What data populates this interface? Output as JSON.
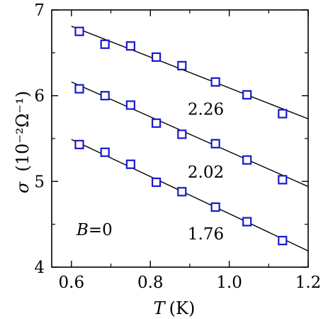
{
  "chart_data": {
    "type": "scatter",
    "xlabel_symbol": "T",
    "xlabel_unit": "(K)",
    "ylabel_symbol": "σ",
    "ylabel_unit": "(10⁻²Ω⁻¹)",
    "xlim": [
      0.55,
      1.2
    ],
    "ylim": [
      4,
      7
    ],
    "xticks": [
      0.6,
      0.8,
      1.0,
      1.2
    ],
    "xtick_labels": [
      "0.6",
      "0.8",
      "1.0",
      "1.2"
    ],
    "yticks": [
      4,
      5,
      6,
      7
    ],
    "ytick_labels": [
      "4",
      "5",
      "6",
      "7"
    ],
    "marker_color": "#1a1acc",
    "line_color": "#000000",
    "annotation_prefix": "B",
    "annotation_rest": "=0",
    "series": [
      {
        "label": "2.26",
        "x": [
          0.62,
          0.685,
          0.75,
          0.815,
          0.88,
          0.965,
          1.045,
          1.135
        ],
        "y": [
          6.75,
          6.6,
          6.58,
          6.45,
          6.35,
          6.16,
          6.01,
          5.79
        ],
        "fit": {
          "x": [
            0.6,
            1.2
          ],
          "y": [
            6.81,
            5.73
          ]
        }
      },
      {
        "label": "2.02",
        "x": [
          0.62,
          0.685,
          0.75,
          0.815,
          0.88,
          0.965,
          1.045,
          1.135
        ],
        "y": [
          6.08,
          6.0,
          5.89,
          5.68,
          5.55,
          5.44,
          5.25,
          5.02
        ],
        "fit": {
          "x": [
            0.6,
            1.2
          ],
          "y": [
            6.16,
            4.94
          ]
        }
      },
      {
        "label": "1.76",
        "x": [
          0.62,
          0.685,
          0.75,
          0.815,
          0.88,
          0.965,
          1.045,
          1.135
        ],
        "y": [
          5.43,
          5.34,
          5.2,
          4.99,
          4.88,
          4.7,
          4.53,
          4.31
        ],
        "fit": {
          "x": [
            0.6,
            1.2
          ],
          "y": [
            5.49,
            4.19
          ]
        }
      }
    ]
  }
}
